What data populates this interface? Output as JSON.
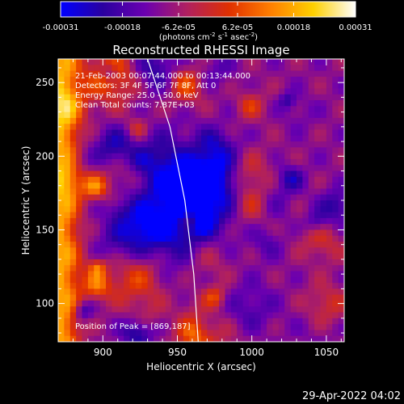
{
  "chart_data": {
    "type": "heatmap",
    "title": "Reconstructed RHESSI Image",
    "xlabel": "Heliocentric X (arcsec)",
    "ylabel": "Heliocentric Y (arcsec)",
    "xlim": [
      870,
      1062
    ],
    "ylim": [
      74,
      266
    ],
    "xticks": [
      900,
      950,
      1000,
      1050
    ],
    "yticks": [
      100,
      150,
      200,
      250
    ],
    "colorbar": {
      "range": [
        -0.00031,
        0.00031
      ],
      "tick_values": [
        -0.00031,
        -0.00018,
        -6.2e-05,
        6.2e-05,
        0.00018,
        0.00031
      ],
      "tick_labels": [
        "-0.00031",
        "-0.00018",
        "-6.2e-05",
        "6.2e-05",
        "0.00018",
        "0.00031"
      ],
      "units_parts": [
        "(photons cm",
        "-2",
        " s",
        "-1",
        " asec",
        "-2",
        ")"
      ],
      "colors": [
        "#0000ff",
        "#2a00a0",
        "#6b00b0",
        "#b02060",
        "#e03000",
        "#ff8000",
        "#ffd000",
        "#ffffff"
      ]
    },
    "annotations": [
      "21-Feb-2003 00:07:44.000 to 00:13:44.000",
      "Detectors: 3F 4F 5F 6F 7F 8F, Att 0",
      "Energy Range: 25.0 - 50.0 keV",
      "Clean      Total counts: 7.87E+03"
    ],
    "peak_label": "Position of Peak = [869,187]",
    "limb_curve": [
      [
        930,
        266
      ],
      [
        945,
        220
      ],
      [
        955,
        170
      ],
      [
        961,
        120
      ],
      [
        964,
        74
      ]
    ],
    "grid_size": [
      48,
      48
    ],
    "grid_min": -0.00031,
    "grid_max": 0.00031,
    "seed": 7
  },
  "timestamp": "29-Apr-2022 04:02"
}
